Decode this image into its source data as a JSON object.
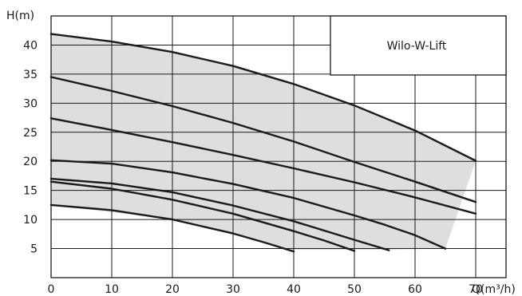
{
  "chart_data": {
    "type": "line",
    "xlabel": "Q(m³/h)",
    "ylabel": "H(m)",
    "xlim": [
      0,
      75
    ],
    "ylim": [
      0,
      45
    ],
    "x_ticks": [
      0,
      10,
      20,
      30,
      40,
      50,
      60,
      70
    ],
    "y_ticks": [
      5,
      10,
      15,
      20,
      25,
      30,
      35,
      40
    ],
    "grid": true,
    "legend": {
      "label": "Wilo-W-Lift",
      "position": "top-right"
    },
    "envelope": {
      "x": [
        0,
        10,
        20,
        30,
        40,
        50,
        60,
        70,
        65,
        55,
        40,
        20,
        0
      ],
      "y": [
        41.9,
        40.6,
        38.8,
        36.4,
        33.3,
        29.6,
        25.3,
        20.1,
        5,
        4.8,
        4.8,
        10,
        12.5
      ]
    },
    "series": [
      {
        "x": [
          0,
          10,
          20,
          30,
          40,
          50,
          60,
          70
        ],
        "y": [
          41.9,
          40.6,
          38.8,
          36.4,
          33.3,
          29.6,
          25.3,
          20.1
        ]
      },
      {
        "x": [
          0,
          10,
          20,
          30,
          40,
          50,
          60,
          70
        ],
        "y": [
          34.5,
          32.1,
          29.5,
          26.6,
          23.4,
          19.9,
          16.5,
          13
        ]
      },
      {
        "x": [
          0,
          10,
          20,
          30,
          40,
          50,
          60,
          70
        ],
        "y": [
          27.4,
          25.4,
          23.3,
          21.1,
          18.8,
          16.4,
          13.8,
          11
        ]
      },
      {
        "x": [
          0,
          10,
          20,
          30,
          40,
          50,
          55,
          60,
          65
        ],
        "y": [
          20.2,
          19.6,
          18.1,
          16.1,
          13.7,
          10.7,
          9.1,
          7.3,
          5
        ]
      },
      {
        "x": [
          0,
          10,
          20,
          30,
          40,
          50,
          55.7
        ],
        "y": [
          17,
          16.2,
          14.7,
          12.4,
          9.7,
          6.5,
          4.7
        ]
      },
      {
        "x": [
          0,
          10,
          20,
          30,
          40,
          45,
          50
        ],
        "y": [
          16.5,
          15.3,
          13.4,
          11,
          8,
          6.4,
          4.6
        ]
      },
      {
        "x": [
          0,
          10,
          20,
          30,
          35,
          40
        ],
        "y": [
          12.5,
          11.6,
          10,
          7.6,
          6.1,
          4.5
        ]
      }
    ]
  }
}
